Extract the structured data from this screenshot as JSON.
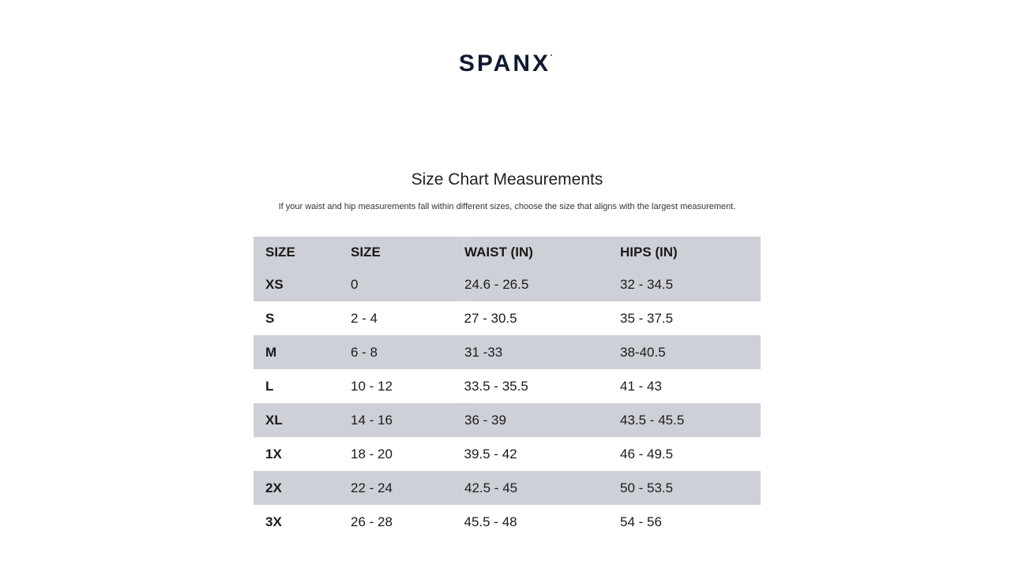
{
  "logo": "SPANX",
  "title": "Size Chart Measurements",
  "subtitle": "If your waist and hip measurements fall within different sizes, choose the size that aligns with the largest measurement.",
  "colors": {
    "shade": "#cdd0d6",
    "logo": "#0f1a2e"
  },
  "table": {
    "headers": [
      "SIZE",
      "SIZE",
      "WAIST (IN)",
      "HIPS (IN)"
    ],
    "rows": [
      [
        "XS",
        "0",
        "24.6 - 26.5",
        "32 - 34.5"
      ],
      [
        "S",
        "2 - 4",
        "27 - 30.5",
        "35 - 37.5"
      ],
      [
        "M",
        "6 - 8",
        "31 -33",
        "38-40.5"
      ],
      [
        "L",
        "10 - 12",
        "33.5 - 35.5",
        "41 - 43"
      ],
      [
        "XL",
        "14 - 16",
        "36 - 39",
        "43.5 - 45.5"
      ],
      [
        "1X",
        "18 - 20",
        "39.5 - 42",
        "46 - 49.5"
      ],
      [
        "2X",
        "22 - 24",
        "42.5 - 45",
        "50 - 53.5"
      ],
      [
        "3X",
        "26 - 28",
        "45.5 - 48",
        "54 - 56"
      ]
    ]
  }
}
